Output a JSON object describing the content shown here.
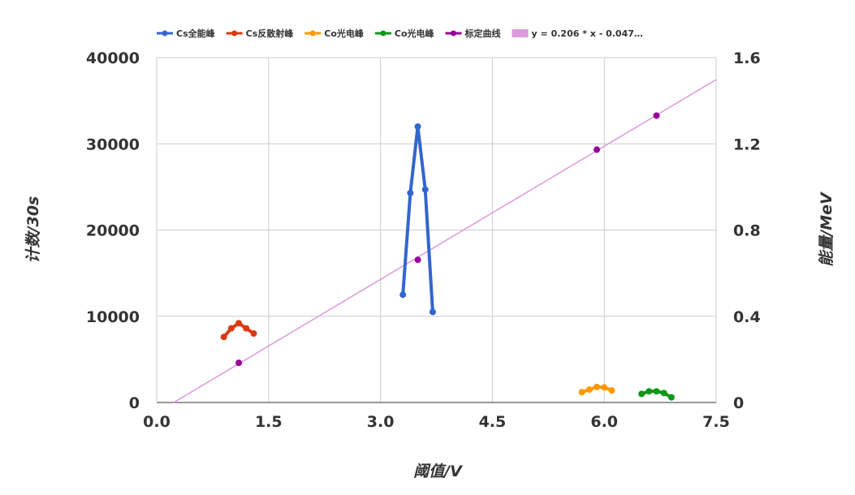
{
  "chart_data": {
    "type": "line",
    "title": "",
    "xlabel": "阈值/V",
    "ylabel_left": "计数/30s",
    "ylabel_right": "能量/MeV",
    "xlim": [
      0,
      7.5
    ],
    "ylim_left": [
      0,
      40000
    ],
    "ylim_right": [
      0,
      1.6
    ],
    "x_ticks": [
      "0.0",
      "1.5",
      "3.0",
      "4.5",
      "6.0",
      "7.5"
    ],
    "y_left_ticks": [
      "0",
      "10000",
      "20000",
      "30000",
      "40000"
    ],
    "y_right_ticks": [
      "0",
      "0.4",
      "0.8",
      "1.2",
      "1.6"
    ],
    "grid": true,
    "legend_position": "top",
    "series": [
      {
        "name": "Cs全能峰",
        "color": "#3366cc",
        "axis": "left",
        "style": "line-markers",
        "x": [
          3.3,
          3.4,
          3.5,
          3.6,
          3.7
        ],
        "y": [
          12500,
          24300,
          32000,
          24700,
          10500
        ]
      },
      {
        "name": "Cs反散射峰",
        "color": "#dc3912",
        "axis": "left",
        "style": "line-markers",
        "x": [
          0.9,
          1.0,
          1.1,
          1.2,
          1.3
        ],
        "y": [
          7600,
          8600,
          9200,
          8600,
          8000
        ]
      },
      {
        "name": "Co光电峰",
        "color": "#ff9900",
        "axis": "left",
        "style": "line-markers",
        "x": [
          5.7,
          5.8,
          5.9,
          6.0,
          6.1
        ],
        "y": [
          1200,
          1500,
          1800,
          1750,
          1400
        ]
      },
      {
        "name": "Co光电峰",
        "color": "#109618",
        "axis": "left",
        "style": "line-markers",
        "x": [
          6.5,
          6.6,
          6.7,
          6.8,
          6.9
        ],
        "y": [
          1000,
          1300,
          1300,
          1100,
          600
        ]
      },
      {
        "name": "标定曲线",
        "color": "#990099",
        "axis": "right",
        "style": "markers",
        "x": [
          1.1,
          3.5,
          5.9,
          6.7
        ],
        "y": [
          0.184,
          0.662,
          1.173,
          1.331
        ]
      }
    ],
    "trendline": {
      "label": "y = 0.206 * x - 0.047…",
      "color": "#dd99dd",
      "axis": "right",
      "slope": 0.206,
      "intercept": -0.047
    }
  }
}
